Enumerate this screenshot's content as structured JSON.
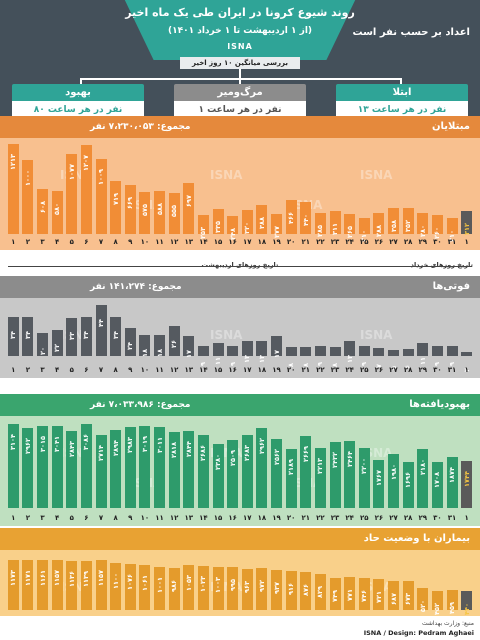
{
  "header": {
    "title": "روند شیوع کرونا در ایران طی یک ماه اخیر",
    "subtitle": "(از ۱ اردیبهشت تا ۱ خرداد ۱۴۰۱)",
    "source_tag": "ISNA",
    "per_hour_note": "اعداد بر حسب نفر است",
    "avg_caption": "بررسی میانگین ۱۰ روز اخیر"
  },
  "summary_cards": [
    {
      "title": "بهبود",
      "value_text": "۸۰ نفر در هر ساعت",
      "color": "#2fa497"
    },
    {
      "title": "مرگ‌ومیر",
      "value_text": "۱ نفر در هر ساعت",
      "color": "#8c8c8c"
    },
    {
      "title": "ابتلا",
      "value_text": "۱۳ نفر در هر ساعت",
      "color": "#2fa497"
    }
  ],
  "sections": {
    "infections": {
      "title": "مبتلایان",
      "total": "مجموع: ۷،۲۳۰،۰۵۳ نفر",
      "bg": "#f8c08f",
      "bar": "#f18d36",
      "band": "#e5893c"
    },
    "deaths": {
      "title": "فوتی‌ها",
      "total": "مجموع: ۱۴۱،۲۷۴ نفر",
      "bg": "#c8c8c8",
      "bar": "#555a60",
      "band": "#8c8c8c"
    },
    "recovered": {
      "title": "بهبودیافته‌ها",
      "total": "مجموع: ۷،۰۳۳،۹۸۶ نفر",
      "bg": "#bfe0c0",
      "bar": "#2e9b6b",
      "band": "#3aa56e"
    },
    "severe": {
      "title": "بیماران با وضعیت حاد",
      "bg": "#f9d08a",
      "bar": "#e49b2c",
      "band": "#e8a233"
    }
  },
  "axis": {
    "ordibehesht_caption": "تاریخ روزهای اردیبهشت",
    "khordad_caption": "تاریخ روزهای خرداد",
    "ticks": [
      "۱",
      "۲",
      "۳",
      "۴",
      "۵",
      "۶",
      "۷",
      "۸",
      "۹",
      "۱۰",
      "۱۱",
      "۱۲",
      "۱۳",
      "۱۴",
      "۱۵",
      "۱۶",
      "۱۷",
      "۱۸",
      "۱۹",
      "۲۰",
      "۲۱",
      "۲۲",
      "۲۳",
      "۲۴",
      "۲۵",
      "۲۶",
      "۲۷",
      "۲۸",
      "۲۹",
      "۳۰",
      "۳۱",
      "۱"
    ]
  },
  "watermark": "ISNA",
  "footer": {
    "source": "منبع: وزارت بهداشت",
    "credit": "ISNA / Design: Pedram Aghaei"
  },
  "chart_data": [
    {
      "type": "bar",
      "title": "مبتلایان",
      "categories": [
        "1",
        "2",
        "3",
        "4",
        "5",
        "6",
        "7",
        "8",
        "9",
        "10",
        "11",
        "12",
        "13",
        "14",
        "15",
        "16",
        "17",
        "18",
        "19",
        "20",
        "21",
        "22",
        "23",
        "24",
        "25",
        "26",
        "27",
        "28",
        "29",
        "30",
        "31",
        "1"
      ],
      "values": [
        1213,
        1000,
        608,
        580,
        1077,
        1207,
        1009,
        719,
        669,
        575,
        588,
        555,
        697,
        253,
        335,
        248,
        320,
        388,
        277,
        466,
        440,
        285,
        311,
        265,
        210,
        288,
        358,
        352,
        280,
        260,
        210,
        312
      ],
      "labels": [
        "۱۲۱۳",
        "۱۰۰۰",
        "۶۰۸",
        "۵۸۰",
        "۱۰۷۷",
        "۱۲۰۷",
        "۱۰۰۹",
        "۷۱۹",
        "۶۶۹",
        "۵۷۵",
        "۵۸۸",
        "۵۵۵",
        "۶۹۷",
        "۲۵۳",
        "۳۳۵",
        "۲۴۸",
        "۳۲۰",
        "۳۸۸",
        "۲۷۷",
        "۴۶۶",
        "۴۴۰",
        "۲۸۵",
        "۳۱۱",
        "۲۶۵",
        "۲۱۰",
        "۲۸۸",
        "۳۵۸",
        "۳۵۲",
        "۲۸۰",
        "۲۶۰",
        "۲۱۰",
        "۳۱۲"
      ],
      "ylim": [
        0,
        1300
      ]
    },
    {
      "type": "bar",
      "title": "فوتی‌ها",
      "categories": [
        "1",
        "2",
        "3",
        "4",
        "5",
        "6",
        "7",
        "8",
        "9",
        "10",
        "11",
        "12",
        "13",
        "14",
        "15",
        "16",
        "17",
        "18",
        "19",
        "20",
        "21",
        "22",
        "23",
        "24",
        "25",
        "26",
        "27",
        "28",
        "29",
        "30",
        "31",
        "1"
      ],
      "values": [
        34,
        34,
        20,
        22,
        33,
        34,
        44,
        34,
        24,
        18,
        18,
        26,
        17,
        9,
        11,
        9,
        13,
        13,
        17,
        8,
        8,
        9,
        8,
        13,
        9,
        7,
        5,
        6,
        11,
        9,
        9,
        2
      ],
      "labels": [
        "۳۴",
        "۳۴",
        "۲۰",
        "۲۲",
        "۳۳",
        "۳۴",
        "۴۴",
        "۳۴",
        "۲۴",
        "۱۸",
        "۱۸",
        "۲۶",
        "۱۷",
        "۹",
        "۱۱",
        "۹",
        "۱۳",
        "۱۳",
        "۱۷",
        "۸",
        "۸",
        "۹",
        "۸",
        "۱۳",
        "۹",
        "۷",
        "۵",
        "۶",
        "۱۱",
        "۹",
        "۹",
        "۲"
      ],
      "ylim": [
        0,
        50
      ]
    },
    {
      "type": "bar",
      "title": "بهبودیافته‌ها",
      "categories": [
        "1",
        "2",
        "3",
        "4",
        "5",
        "6",
        "7",
        "8",
        "9",
        "10",
        "11",
        "12",
        "13",
        "14",
        "15",
        "16",
        "17",
        "18",
        "19",
        "20",
        "21",
        "22",
        "23",
        "24",
        "25",
        "26",
        "27",
        "28",
        "29",
        "30",
        "31",
        "1"
      ],
      "values": [
        3104,
        2962,
        3015,
        3041,
        2843,
        3086,
        2714,
        2894,
        2983,
        3019,
        3011,
        2818,
        2844,
        2686,
        2380,
        2509,
        2683,
        2962,
        2562,
        2189,
        2669,
        2213,
        2432,
        2464,
        2200,
        1767,
        1980,
        1696,
        2180,
        1708,
        1874,
        1744
      ],
      "labels": [
        "۳۱۰۴",
        "۲۹۶۲",
        "۳۰۱۵",
        "۳۰۴۱",
        "۲۸۴۳",
        "۳۰۸۶",
        "۲۷۱۴",
        "۲۸۹۴",
        "۲۹۸۳",
        "۳۰۱۹",
        "۳۰۱۱",
        "۲۸۱۸",
        "۲۸۴۴",
        "۲۶۸۶",
        "۲۳۸۰",
        "۲۵۰۹",
        "۲۶۸۳",
        "۲۹۶۲",
        "۲۵۶۲",
        "۲۱۸۹",
        "۲۶۶۹",
        "۲۲۱۳",
        "۲۴۳۲",
        "۲۴۶۴",
        "۲۲۰۰",
        "۱۷۶۷",
        "۱۹۸۰",
        "۱۶۹۶",
        "۲۱۸۰",
        "۱۷۰۸",
        "۱۸۷۴",
        "۱۷۴۴"
      ],
      "ylim": [
        0,
        3400
      ]
    },
    {
      "type": "bar",
      "title": "بیماران با وضعیت حاد",
      "categories": [
        "1",
        "2",
        "3",
        "4",
        "5",
        "6",
        "7",
        "8",
        "9",
        "10",
        "11",
        "12",
        "13",
        "14",
        "15",
        "16",
        "17",
        "18",
        "19",
        "20",
        "21",
        "22",
        "23",
        "24",
        "25",
        "26",
        "27",
        "28",
        "29",
        "30",
        "31",
        "1"
      ],
      "values": [
        1173,
        1171,
        1161,
        1157,
        1136,
        1139,
        1157,
        1100,
        1076,
        1061,
        1001,
        986,
        1053,
        1023,
        1003,
        995,
        963,
        972,
        937,
        916,
        876,
        829,
        749,
        771,
        746,
        721,
        687,
        673,
        520,
        452,
        459,
        440
      ],
      "labels": [
        "۱۱۷۳",
        "۱۱۷۱",
        "۱۱۶۱",
        "۱۱۵۷",
        "۱۱۳۶",
        "۱۱۳۹",
        "۱۱۵۷",
        "۱۱۰۰",
        "۱۰۷۶",
        "۱۰۶۱",
        "۱۰۰۱",
        "۹۸۶",
        "۱۰۵۳",
        "۱۰۲۳",
        "۱۰۰۳",
        "۹۹۵",
        "۹۶۳",
        "۹۷۲",
        "۹۳۷",
        "۹۱۶",
        "۸۷۶",
        "۸۲۹",
        "۷۴۹",
        "۷۷۱",
        "۷۴۶",
        "۷۲۱",
        "۶۸۷",
        "۶۷۳",
        "۵۲۰",
        "۴۵۲",
        "۴۵۹",
        "۴۴۰"
      ],
      "ylim": [
        0,
        1400
      ]
    }
  ]
}
